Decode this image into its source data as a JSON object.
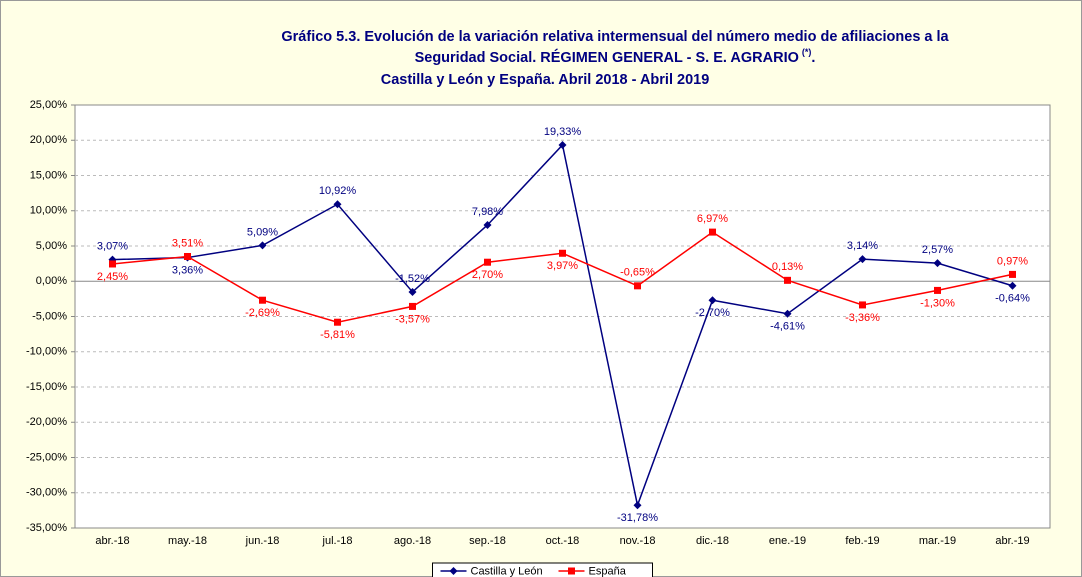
{
  "chart_data": {
    "type": "line",
    "title": [
      "Gráfico 5.3. Evolución de la variación relativa intermensual del número medio de afiliaciones a la",
      "Seguridad Social. RÉGIMEN GENERAL - S. E. AGRARIO",
      "Castilla y León y España. Abril 2018 - Abril 2019"
    ],
    "title_note": "(*)",
    "title_note_tail": ".",
    "categories": [
      "abr.-18",
      "may.-18",
      "jun.-18",
      "jul.-18",
      "ago.-18",
      "sep.-18",
      "oct.-18",
      "nov.-18",
      "dic.-18",
      "ene.-19",
      "feb.-19",
      "mar.-19",
      "abr.-19"
    ],
    "series": [
      {
        "name": "Castilla y León",
        "color": "#000080",
        "marker": "diamond",
        "values": [
          3.07,
          3.36,
          5.09,
          10.92,
          -1.52,
          7.98,
          19.33,
          -31.78,
          -2.7,
          -4.61,
          3.14,
          2.57,
          -0.64
        ],
        "value_labels": [
          "3,07%",
          "3,36%",
          "5,09%",
          "10,92%",
          "-1,52%",
          "7,98%",
          "19,33%",
          "-31,78%",
          "-2,70%",
          "-4,61%",
          "3,14%",
          "2,57%",
          "-0,64%"
        ]
      },
      {
        "name": "España",
        "color": "#FF0000",
        "marker": "square",
        "values": [
          2.45,
          3.51,
          -2.69,
          -5.81,
          -3.57,
          2.7,
          3.97,
          -0.65,
          6.97,
          0.13,
          -3.36,
          -1.3,
          0.97
        ],
        "value_labels": [
          "2,45%",
          "3,51%",
          "-2,69%",
          "-5,81%",
          "-3,57%",
          "2,70%",
          "3,97%",
          "-0,65%",
          "6,97%",
          "0,13%",
          "-3,36%",
          "-1,30%",
          "0,97%"
        ]
      }
    ],
    "ylim": [
      -35,
      25
    ],
    "yticks": [
      {
        "value": -35,
        "label": "-35,00%"
      },
      {
        "value": -30,
        "label": "-30,00%"
      },
      {
        "value": -25,
        "label": "-25,00%"
      },
      {
        "value": -20,
        "label": "-20,00%"
      },
      {
        "value": -15,
        "label": "-15,00%"
      },
      {
        "value": -10,
        "label": "-10,00%"
      },
      {
        "value": -5,
        "label": "-5,00%"
      },
      {
        "value": 0,
        "label": "0,00%"
      },
      {
        "value": 5,
        "label": "5,00%"
      },
      {
        "value": 10,
        "label": "10,00%"
      },
      {
        "value": 15,
        "label": "15,00%"
      },
      {
        "value": 20,
        "label": "20,00%"
      },
      {
        "value": 25,
        "label": "25,00%"
      }
    ],
    "grid": true,
    "legend": "bottom"
  }
}
